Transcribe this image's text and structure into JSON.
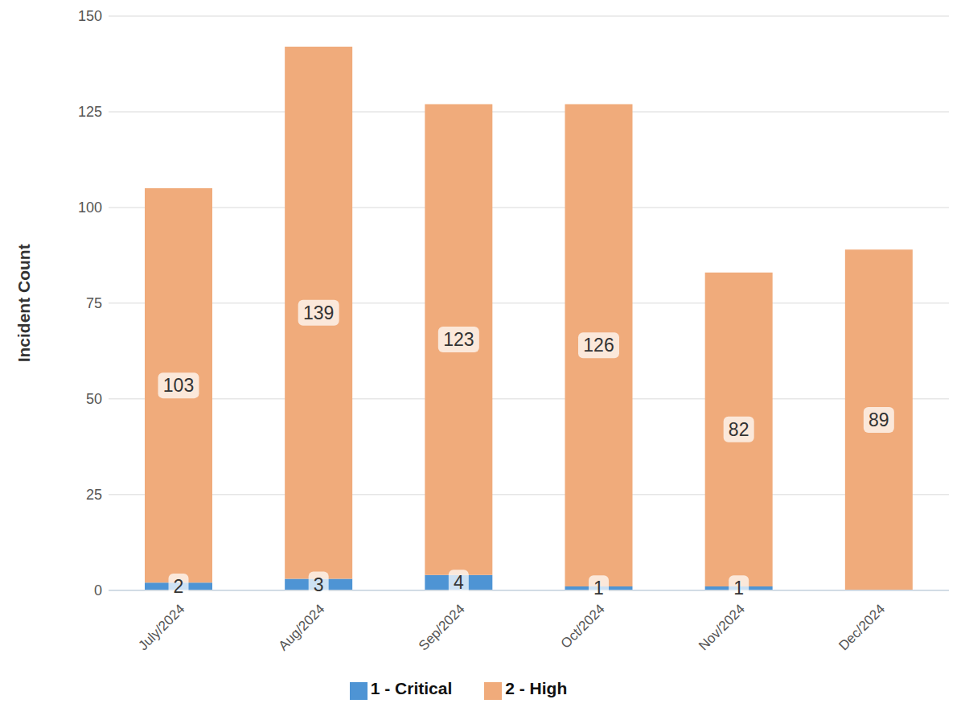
{
  "chart_data": {
    "type": "bar",
    "categories": [
      "July/2024",
      "Aug/2024",
      "Sep/2024",
      "Oct/2024",
      "Nov/2024",
      "Dec/2024"
    ],
    "series": [
      {
        "name": "1 - Critical",
        "color": "#4e94d4",
        "values": [
          2,
          3,
          4,
          1,
          1,
          null
        ]
      },
      {
        "name": "2 - High",
        "color": "#f0ab7b",
        "values": [
          103,
          139,
          123,
          126,
          82,
          89
        ]
      }
    ],
    "ylabel": "Incident Count",
    "ylim": [
      0,
      150
    ],
    "yticks": [
      0,
      25,
      50,
      75,
      100,
      125,
      150
    ],
    "grid": true,
    "stacked": true,
    "data_labels": true,
    "legend": "bottom"
  }
}
